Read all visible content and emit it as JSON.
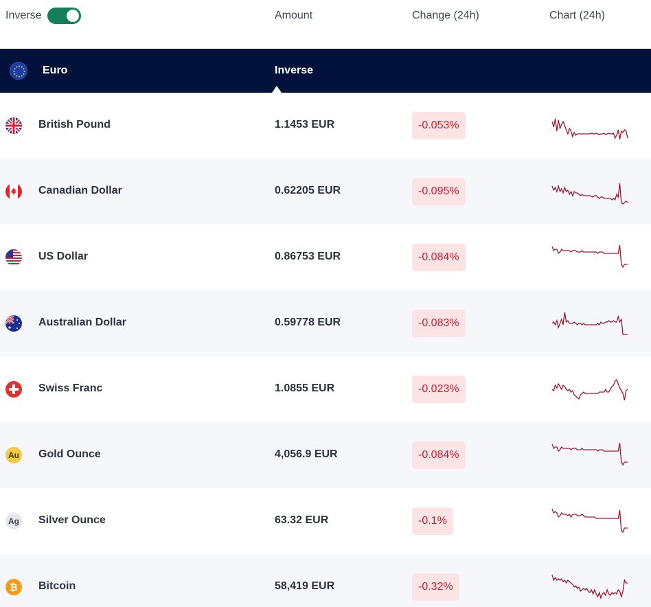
{
  "header": {
    "toggle_label": "Inverse",
    "toggle_on": true,
    "columns": {
      "amount": "Amount",
      "change": "Change (24h)",
      "chart": "Chart (24h)"
    }
  },
  "base": {
    "name": "Euro",
    "mode_label": "Inverse"
  },
  "colors": {
    "toggle": "#13805a",
    "base_bar": "#03123a",
    "negative": "#c21f35",
    "negative_bg": "#fde4e4",
    "sparkline": "#a0152e"
  },
  "rows": [
    {
      "name": "British Pound",
      "amount": "1.1453 EUR",
      "change": "-0.053%",
      "icon": "uk-flag-icon",
      "spark": [
        14,
        22,
        10,
        28,
        12,
        24,
        18,
        14,
        20,
        26,
        32,
        24,
        28,
        36,
        30,
        34,
        32,
        32,
        32,
        32,
        32,
        32,
        32,
        32,
        32,
        31,
        32,
        32,
        31,
        32,
        33,
        32,
        32,
        31,
        33,
        32,
        31,
        32,
        32,
        31,
        38,
        34,
        26,
        40,
        28,
        30,
        26,
        28,
        38
      ]
    },
    {
      "name": "Canadian Dollar",
      "amount": "0.62205 EUR",
      "change": "-0.095%",
      "icon": "canada-flag-icon",
      "spark": [
        12,
        18,
        14,
        20,
        12,
        20,
        16,
        22,
        14,
        20,
        18,
        24,
        20,
        26,
        20,
        22,
        22,
        24,
        26,
        24,
        26,
        26,
        26,
        26,
        26,
        27,
        28,
        26,
        26,
        28,
        30,
        28,
        28,
        30,
        30,
        30,
        30,
        30,
        32,
        30,
        32,
        24,
        28,
        8,
        36,
        38,
        36,
        34,
        36
      ]
    },
    {
      "name": "US Dollar",
      "amount": "0.86753 EUR",
      "change": "-0.084%",
      "icon": "us-flag-icon",
      "spark": [
        4,
        10,
        8,
        8,
        14,
        12,
        8,
        10,
        10,
        10,
        10,
        10,
        12,
        10,
        10,
        10,
        12,
        12,
        12,
        10,
        12,
        12,
        12,
        12,
        12,
        12,
        12,
        12,
        12,
        14,
        12,
        12,
        12,
        14,
        14,
        14,
        14,
        14,
        14,
        14,
        14,
        14,
        14,
        2,
        30,
        34,
        30,
        30,
        30
      ]
    },
    {
      "name": "Australian Dollar",
      "amount": "0.59778 EUR",
      "change": "-0.083%",
      "icon": "australia-flag-icon",
      "spark": [
        20,
        18,
        22,
        16,
        26,
        20,
        14,
        22,
        4,
        18,
        16,
        20,
        20,
        20,
        18,
        20,
        22,
        20,
        20,
        22,
        20,
        22,
        22,
        22,
        22,
        22,
        22,
        22,
        22,
        20,
        22,
        18,
        20,
        20,
        18,
        18,
        16,
        18,
        18,
        16,
        18,
        18,
        10,
        18,
        14,
        36,
        36,
        36,
        36
      ]
    },
    {
      "name": "Swiss Franc",
      "amount": "1.0855 EUR",
      "change": "-0.023%",
      "icon": "swiss-flag-icon",
      "spark": [
        20,
        22,
        14,
        18,
        12,
        16,
        20,
        14,
        16,
        20,
        22,
        20,
        24,
        22,
        28,
        30,
        32,
        34,
        28,
        26,
        24,
        26,
        26,
        26,
        26,
        26,
        26,
        26,
        26,
        26,
        24,
        24,
        24,
        24,
        20,
        24,
        24,
        20,
        16,
        14,
        8,
        6,
        12,
        18,
        22,
        26,
        36,
        22,
        20
      ]
    },
    {
      "name": "Gold Ounce",
      "amount": "4,056.9 EUR",
      "change": "-0.084%",
      "icon": "gold-ounce-icon",
      "spark": [
        4,
        10,
        8,
        8,
        14,
        12,
        8,
        10,
        10,
        10,
        10,
        10,
        12,
        10,
        10,
        10,
        12,
        12,
        12,
        10,
        12,
        12,
        12,
        12,
        12,
        12,
        12,
        12,
        12,
        14,
        12,
        12,
        12,
        14,
        14,
        14,
        14,
        14,
        14,
        14,
        14,
        14,
        14,
        2,
        30,
        34,
        30,
        30,
        30
      ]
    },
    {
      "name": "Silver Ounce",
      "amount": "63.32 EUR",
      "change": "-0.1%",
      "icon": "silver-ounce-icon",
      "spark": [
        2,
        8,
        6,
        8,
        14,
        12,
        8,
        10,
        10,
        10,
        12,
        10,
        14,
        10,
        10,
        10,
        12,
        12,
        12,
        10,
        12,
        14,
        14,
        14,
        14,
        14,
        14,
        14,
        16,
        16,
        16,
        16,
        16,
        16,
        16,
        16,
        16,
        16,
        16,
        16,
        16,
        16,
        16,
        4,
        34,
        36,
        30,
        30,
        30
      ]
    },
    {
      "name": "Bitcoin",
      "amount": "58,419 EUR",
      "change": "-0.32%",
      "icon": "bitcoin-icon",
      "spark": [
        2,
        10,
        6,
        10,
        8,
        10,
        8,
        12,
        10,
        14,
        10,
        12,
        14,
        16,
        20,
        18,
        22,
        20,
        26,
        24,
        22,
        24,
        22,
        26,
        28,
        24,
        30,
        24,
        30,
        34,
        28,
        36,
        30,
        28,
        32,
        24,
        30,
        32,
        28,
        30,
        28,
        30,
        24,
        26,
        34,
        26,
        10,
        14,
        14
      ]
    }
  ]
}
